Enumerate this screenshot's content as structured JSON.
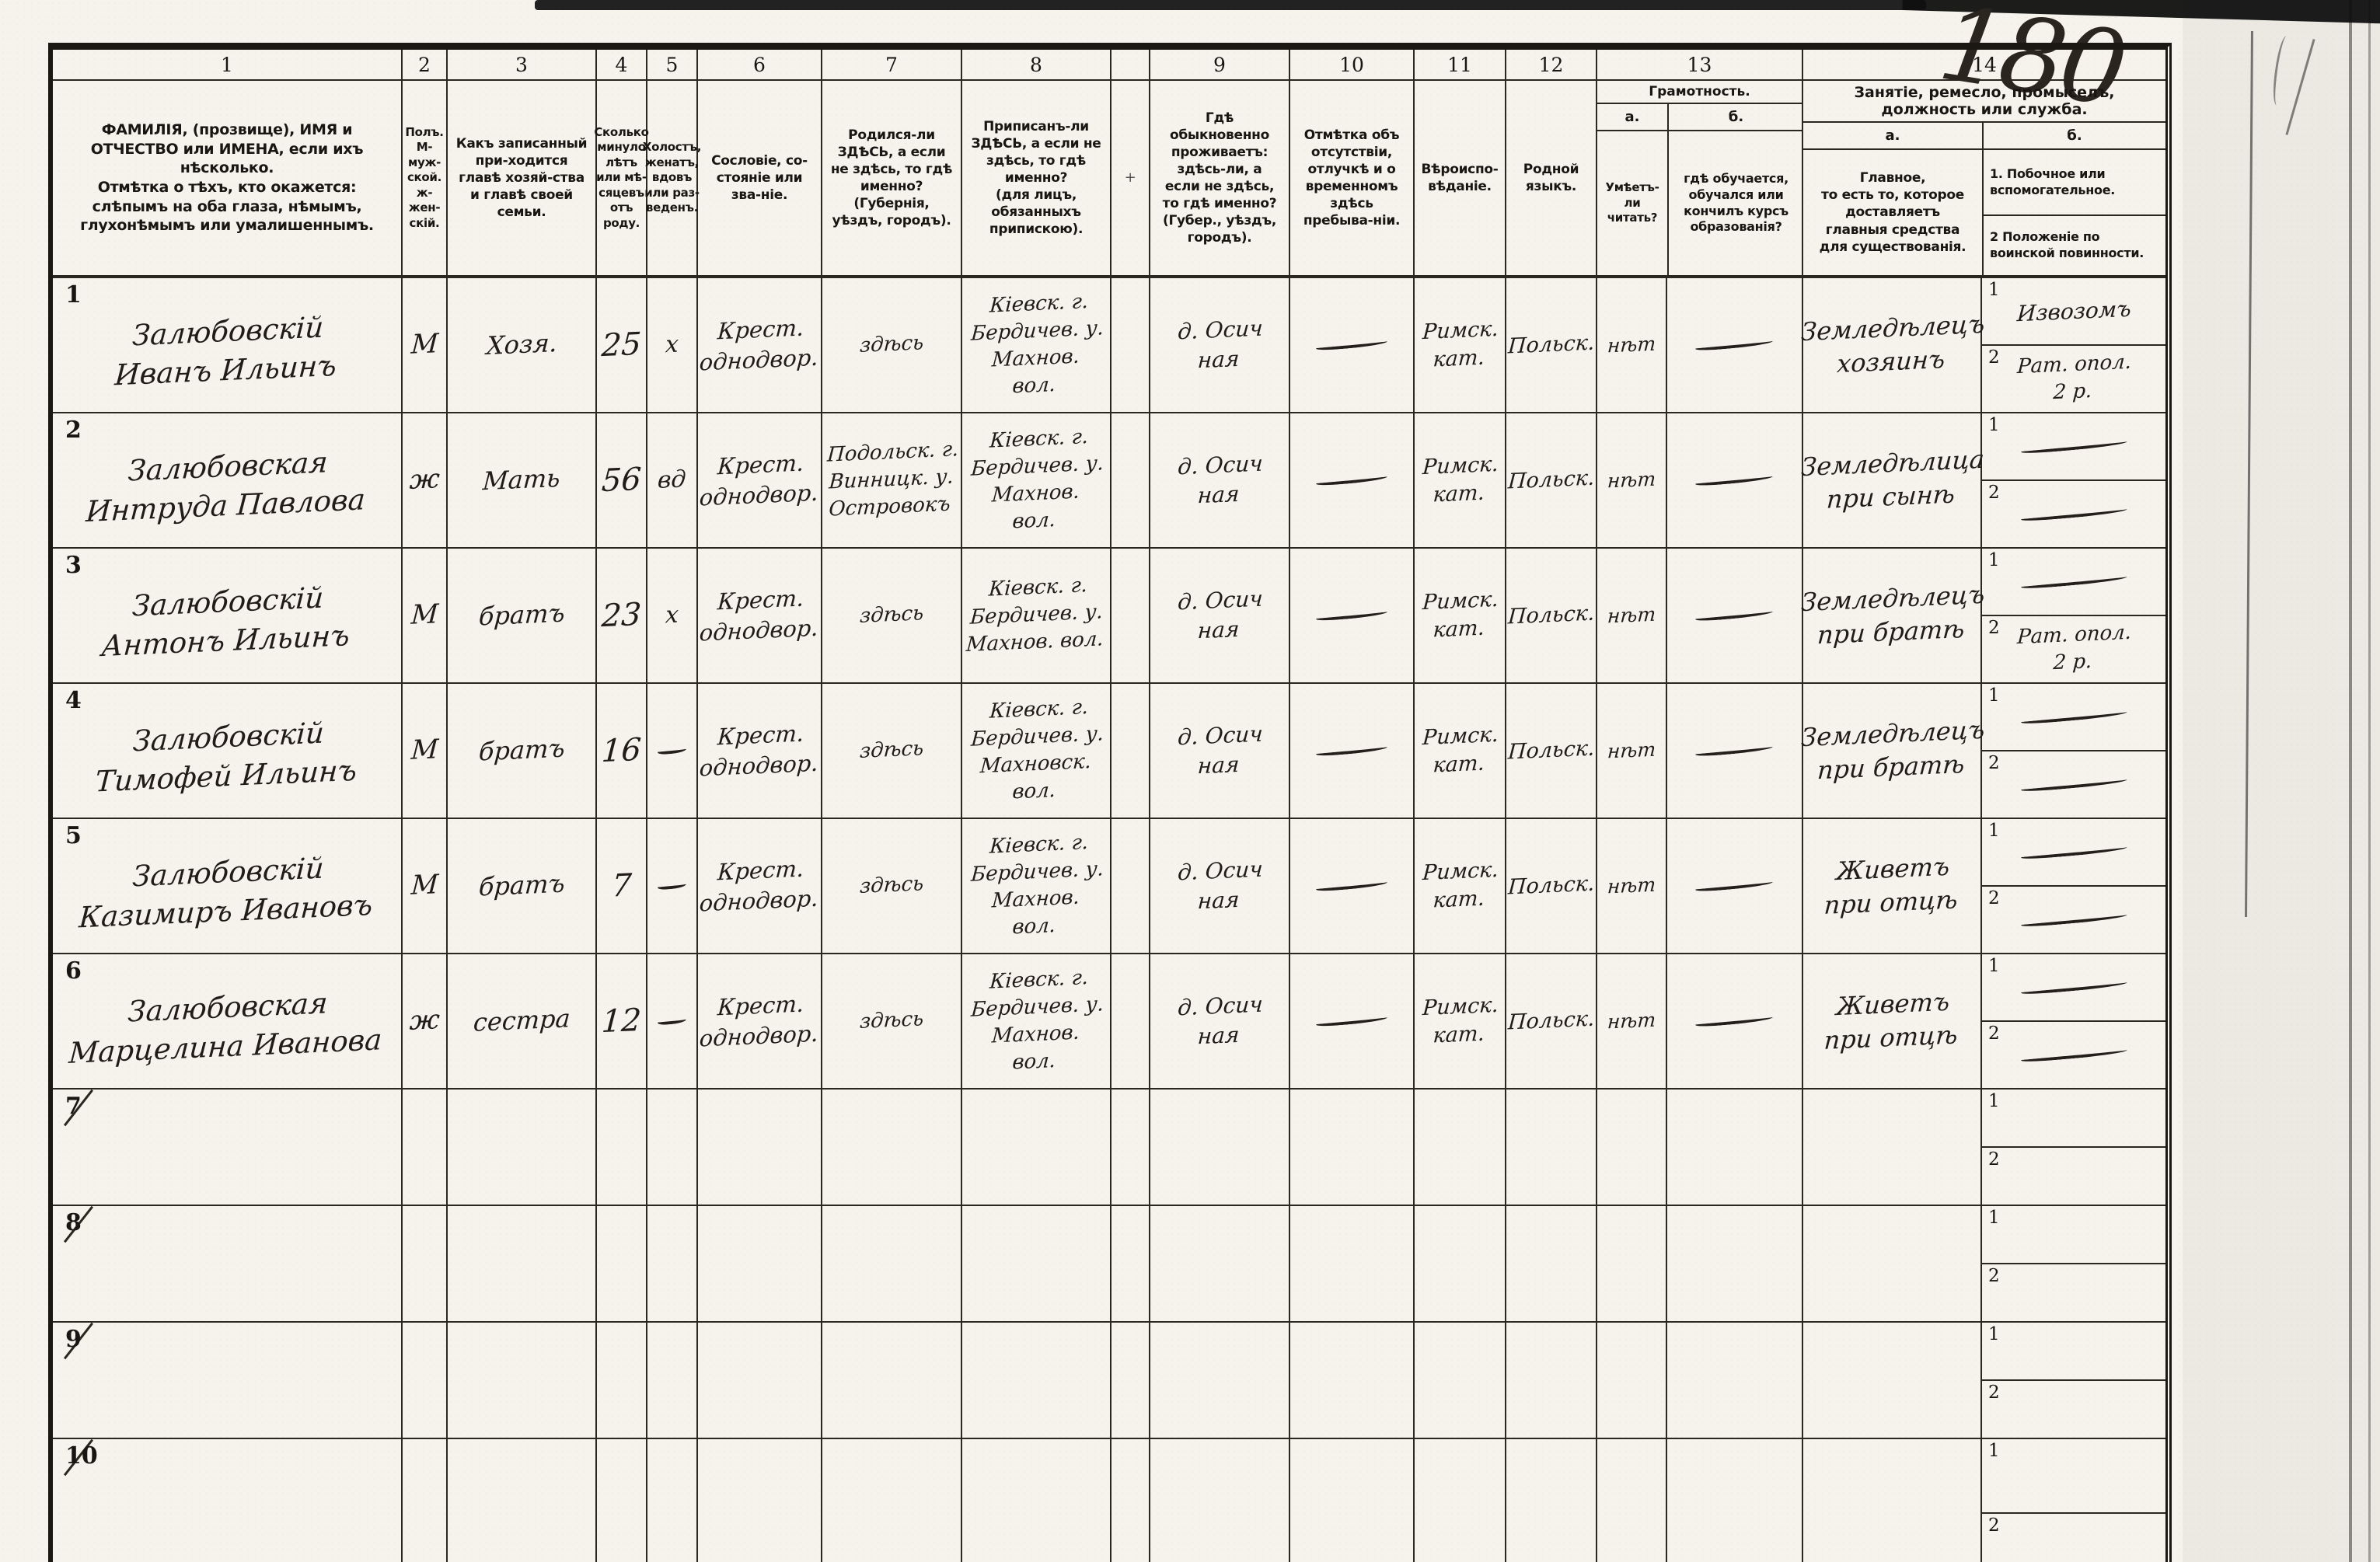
{
  "page_number": "180",
  "header": {
    "col1": {
      "num": "1",
      "text": "ФАМИЛІЯ, (прозвище), ИМЯ и ОТЧЕСТВО или ИМЕНА, если ихъ нѣсколько.\nОтмѣтка о тѣхъ, кто окажется: слѣпымъ на оба глаза, нѣмымъ, глухонѣмымъ или умалишеннымъ."
    },
    "col2": {
      "num": "2",
      "text": "Полъ.\nМ-муж-ской.\nж-жен-скій."
    },
    "col3": {
      "num": "3",
      "text": "Какъ записанный при-ходится главѣ хозяй-ства и главѣ своей семьи."
    },
    "col4": {
      "num": "4",
      "text": "Сколько минуло лѣтъ или мѣ-сяцевъ отъ роду."
    },
    "col5": {
      "num": "5",
      "text": "Холостъ, женатъ, вдовъ или раз-веденъ."
    },
    "col6": {
      "num": "6",
      "text": "Сословіе, со-стояніе или зва-ніе."
    },
    "col7": {
      "num": "7",
      "text": "Родился-ли ЗДѢСЬ, а если не здѣсь, то гдѣ именно?\n(Губернія, уѣздъ, городъ)."
    },
    "col8": {
      "num": "8",
      "text": "Приписанъ-ли ЗДѢСЬ, а если не здѣсь, то гдѣ именно?\n(для лицъ, обязанныхъ припискою)."
    },
    "spacer_mark": "+",
    "col9": {
      "num": "9",
      "text": "Гдѣ обыкновенно проживаетъ: здѣсь-ли, а если не здѣсь, то гдѣ именно?\n(Губер., уѣздъ, городъ)."
    },
    "col10": {
      "num": "10",
      "text": "Отмѣтка объ отсутствіи, отлучкѣ и о временномъ здѣсь пребыва-ніи."
    },
    "col11": {
      "num": "11",
      "text": "Вѣроиспо-вѣданіе."
    },
    "col12": {
      "num": "12",
      "text": "Родной языкъ."
    },
    "col13": {
      "num": "13",
      "title": "Грамотность.",
      "a_label": "а.",
      "b_label": "б.",
      "a_text": "Умѣетъ-ли читать?",
      "b_text": "гдѣ обучается, обучался или кончилъ курсъ образованія?"
    },
    "col14": {
      "num": "14",
      "title": "Занятіе, ремесло, промыселъ, должность или служба.",
      "a_label": "а.",
      "b_label": "б.",
      "a_text": "Главное,\nто есть то, которое доставляетъ главныя средства для существованія.",
      "b1_text": "1.  Побочное или вспомогательное.",
      "b2_text": "2  Положеніе по воинской повинности."
    }
  },
  "rows": [
    {
      "num": "1",
      "cancelled": false,
      "name": "Залюбовскій\nИванъ Ильинъ",
      "sex": "М",
      "relation": "Хозя.",
      "age": "25",
      "marital": "х",
      "estate": "Крест.\nоднодвор.",
      "birthplace": "здѣсь",
      "registered": "Кіевск. г.\nБердичев. у.\nМахнов.\nвол.",
      "residence": "д. Осич\nная",
      "absence": "—",
      "religion": "Римск.\nкат.",
      "language": "Польск.",
      "reads": "нѣт",
      "education": "—",
      "occupation": "Земледѣлецъ\nхозяинъ",
      "side": "Извозомъ",
      "military": "Рат. опол.\n2 р."
    },
    {
      "num": "2",
      "cancelled": false,
      "name": "Залюбовская\nИнтруда Павлова",
      "sex": "ж",
      "relation": "Мать",
      "age": "56",
      "marital": "вд",
      "estate": "Крест.\nоднодвор.",
      "birthplace": "Подольск. г.\nВинницк. у.\nОстровокъ",
      "registered": "Кіевск. г.\nБердичев. у.\nМахнов.\nвол.",
      "residence": "д. Осич\nная",
      "absence": "—",
      "religion": "Римск.\nкат.",
      "language": "Польск.",
      "reads": "нѣт",
      "education": "—",
      "occupation": "Земледѣлица\nпри сынѣ",
      "side": "—",
      "military": "—"
    },
    {
      "num": "3",
      "cancelled": false,
      "name": "Залюбовскій\nАнтонъ Ильинъ",
      "sex": "М",
      "relation": "братъ",
      "age": "23",
      "marital": "х",
      "estate": "Крест.\nоднодвор.",
      "birthplace": "здѣсь",
      "registered": "Кіевск. г.\nБердичев. у.\nМахнов. вол.",
      "residence": "д. Осич\nная",
      "absence": "—",
      "religion": "Римск.\nкат.",
      "language": "Польск.",
      "reads": "нѣт",
      "education": "—",
      "occupation": "Земледѣлецъ\nпри братѣ",
      "side": "—",
      "military": "Рат. опол.\n2 р."
    },
    {
      "num": "4",
      "cancelled": false,
      "name": "Залюбовскій\nТимофей Ильинъ",
      "sex": "М",
      "relation": "братъ",
      "age": "16",
      "marital": "—",
      "estate": "Крест.\nоднодвор.",
      "birthplace": "здѣсь",
      "registered": "Кіевск. г.\nБердичев. у.\nМахновск.\nвол.",
      "residence": "д. Осич\nная",
      "absence": "—",
      "religion": "Римск.\nкат.",
      "language": "Польск.",
      "reads": "нѣт",
      "education": "—",
      "occupation": "Земледѣлецъ\nпри братѣ",
      "side": "—",
      "military": "—"
    },
    {
      "num": "5",
      "cancelled": false,
      "name": "Залюбовскій\nКазимиръ Ивановъ",
      "sex": "М",
      "relation": "братъ",
      "age": "7",
      "marital": "—",
      "estate": "Крест.\nоднодвор.",
      "birthplace": "здѣсь",
      "registered": "Кіевск. г.\nБердичев. у.\nМахнов.\nвол.",
      "residence": "д. Осич\nная",
      "absence": "—",
      "religion": "Римск.\nкат.",
      "language": "Польск.",
      "reads": "нѣт",
      "education": "—",
      "occupation": "Живетъ\nпри отцѣ",
      "side": "—",
      "military": "—"
    },
    {
      "num": "6",
      "cancelled": false,
      "name": "Залюбовская\nМарцелина Иванова",
      "sex": "ж",
      "relation": "сестра",
      "age": "12",
      "marital": "—",
      "estate": "Крест.\nоднодвор.",
      "birthplace": "здѣсь",
      "registered": "Кіевск. г.\nБердичев. у.\nМахнов.\nвол.",
      "residence": "д. Осич\nная",
      "absence": "—",
      "religion": "Римск.\nкат.",
      "language": "Польск.",
      "reads": "нѣт",
      "education": "—",
      "occupation": "Живетъ\nпри отцѣ",
      "side": "—",
      "military": "—"
    },
    {
      "num": "7",
      "cancelled": true,
      "name": "",
      "sex": "",
      "relation": "",
      "age": "",
      "marital": "",
      "estate": "",
      "birthplace": "",
      "registered": "",
      "residence": "",
      "absence": "",
      "religion": "",
      "language": "",
      "reads": "",
      "education": "",
      "occupation": "",
      "side": "",
      "military": ""
    },
    {
      "num": "8",
      "cancelled": true,
      "name": "",
      "sex": "",
      "relation": "",
      "age": "",
      "marital": "",
      "estate": "",
      "birthplace": "",
      "registered": "",
      "residence": "",
      "absence": "",
      "religion": "",
      "language": "",
      "reads": "",
      "education": "",
      "occupation": "",
      "side": "",
      "military": ""
    },
    {
      "num": "9",
      "cancelled": true,
      "name": "",
      "sex": "",
      "relation": "",
      "age": "",
      "marital": "",
      "estate": "",
      "birthplace": "",
      "registered": "",
      "residence": "",
      "absence": "",
      "religion": "",
      "language": "",
      "reads": "",
      "education": "",
      "occupation": "",
      "side": "",
      "military": ""
    },
    {
      "num": "10",
      "cancelled": true,
      "name": "",
      "sex": "",
      "relation": "",
      "age": "",
      "marital": "",
      "estate": "",
      "birthplace": "",
      "registered": "",
      "residence": "",
      "absence": "",
      "religion": "",
      "language": "",
      "reads": "",
      "education": "",
      "occupation": "",
      "side": "",
      "military": ""
    }
  ]
}
